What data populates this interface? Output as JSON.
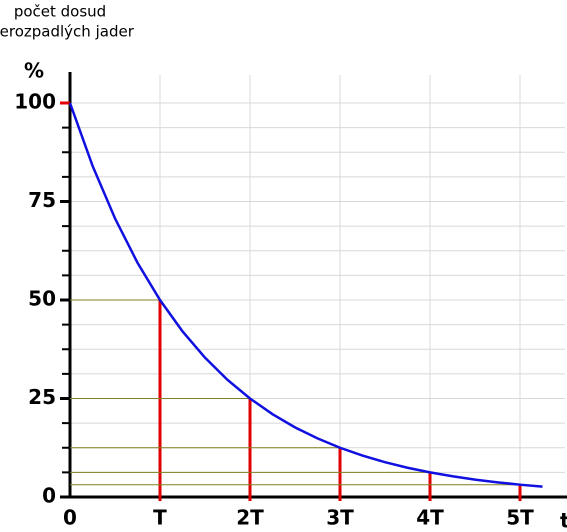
{
  "chart_data": {
    "type": "line",
    "y_label_lines": [
      "počet dosud",
      "nerozpadlých jader"
    ],
    "y_unit": "%",
    "x_label": "t",
    "x": [
      0,
      0.25,
      0.5,
      0.75,
      1,
      1.25,
      1.5,
      1.75,
      2,
      2.25,
      2.5,
      2.75,
      3,
      3.25,
      3.5,
      3.75,
      4,
      4.25,
      4.5,
      4.75,
      5,
      5.25
    ],
    "series": [
      {
        "color": "#1010e0",
        "values": [
          100,
          84.09,
          70.71,
          59.46,
          50,
          42.04,
          35.36,
          29.73,
          25,
          21.02,
          17.68,
          14.87,
          12.5,
          10.51,
          8.84,
          7.43,
          6.25,
          5.26,
          4.42,
          3.72,
          3.125,
          2.63
        ]
      }
    ],
    "half_life_points": {
      "x": [
        1,
        2,
        3,
        4,
        5
      ],
      "values": [
        50,
        25,
        12.5,
        6.25,
        3.125
      ],
      "color": "#e00000",
      "guide_color": "#808020"
    },
    "xlim": [
      0,
      5.5
    ],
    "ylim": [
      0,
      100
    ],
    "xticks": [
      0,
      {
        "value": 1,
        "label": "T"
      },
      {
        "value": 2,
        "label": "2T"
      },
      {
        "value": 3,
        "label": "3T"
      },
      {
        "value": 4,
        "label": "4T"
      },
      {
        "value": 5,
        "label": "5T"
      }
    ],
    "yticks": [
      0,
      25,
      50,
      75,
      100
    ],
    "yminorticks": [
      6.25,
      12.5,
      18.75,
      31.25,
      37.5,
      43.75,
      56.25,
      62.5,
      68.75,
      81.25,
      87.5,
      93.75
    ],
    "grid": true
  }
}
